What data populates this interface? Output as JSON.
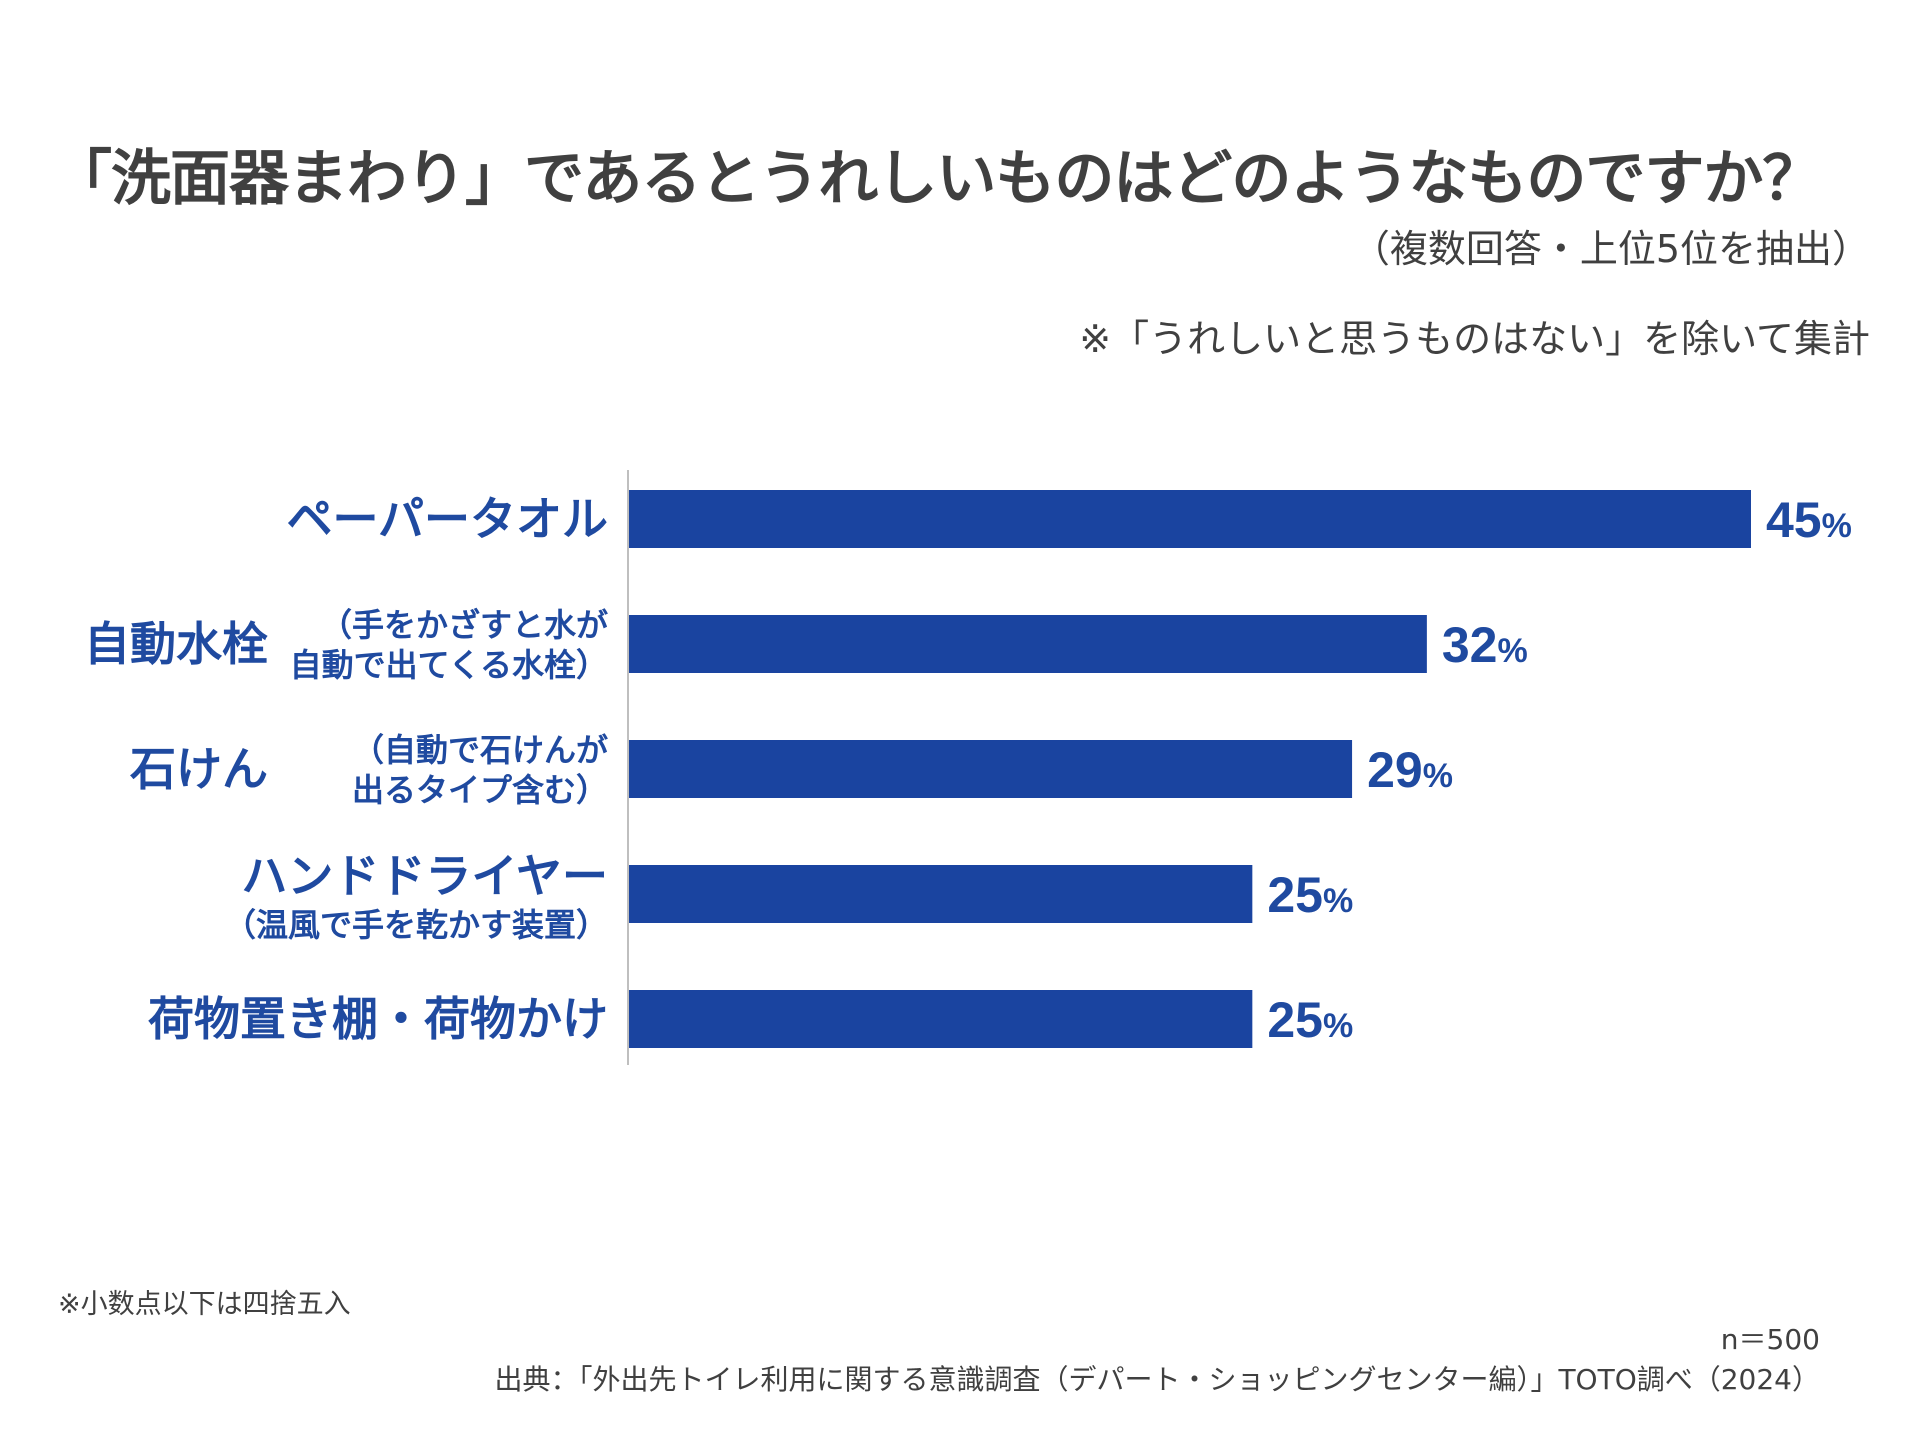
{
  "title": "「洗面器まわり」であるとうれしいものはどのようなものですか？",
  "subtitle": "（複数回答・上位5位を抽出）",
  "note": "※「うれしいと思うものはない」を除いて集計",
  "footnote": "※小数点以下は四捨五入",
  "sample_size": "n＝500",
  "source": "出典：「外出先トイレ利用に関する意識調査（デパート・ショッピングセンター編）」TOTO調べ（2024）",
  "colors": {
    "bar": "#1a44a0",
    "label": "#1f4aa0",
    "text": "#404040",
    "axis": "#bfbfbf"
  },
  "chart_data": {
    "type": "bar",
    "orientation": "horizontal",
    "categories": [
      {
        "label": "ペーパータオル",
        "sub": []
      },
      {
        "label": "自動水栓",
        "sub": [
          "（手をかざすと水が",
          "自動で出てくる水栓）"
        ]
      },
      {
        "label": "石けん",
        "sub": [
          "（自動で石けんが",
          "出るタイプ含む）"
        ]
      },
      {
        "label": "ハンドドライヤー",
        "sub": [
          "（温風で手を乾かす装置）"
        ]
      },
      {
        "label": "荷物置き棚・荷物かけ",
        "sub": []
      }
    ],
    "values": [
      45,
      32,
      29,
      25,
      25
    ],
    "unit": "%",
    "xlim": [
      0,
      45
    ],
    "grid": false
  }
}
